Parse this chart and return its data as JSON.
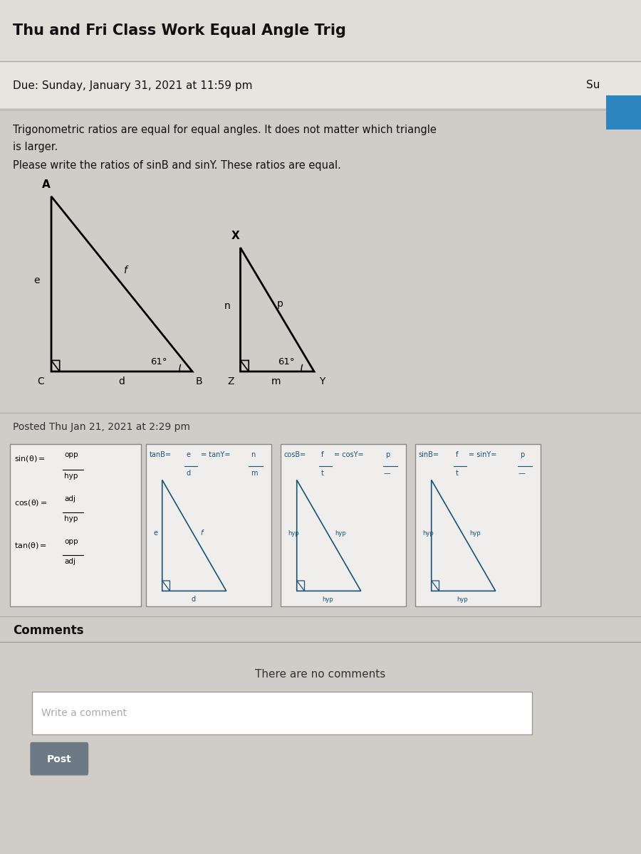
{
  "title": "Thu and Fri Class Work Equal Angle Trig",
  "due_line": "Due: Sunday, January 31, 2021 at 11:59 pm",
  "su_label": "Su",
  "description_line1": "Trigonometric ratios are equal for equal angles. It does not matter which triangle",
  "description_line2": "is larger.",
  "instruction": "Please write the ratios of sinB and sinY. These ratios are equal.",
  "posted_line": "Posted Thu Jan 21, 2021 at 2:29 pm",
  "comments_title": "Comments",
  "no_comments": "There are no comments",
  "write_comment": "Write a comment",
  "post_btn": "Post",
  "bg_color": "#d0ccc8",
  "panel_bg": "#c8c4c0",
  "blue_color": "#1a5276",
  "angle_label": "61°"
}
